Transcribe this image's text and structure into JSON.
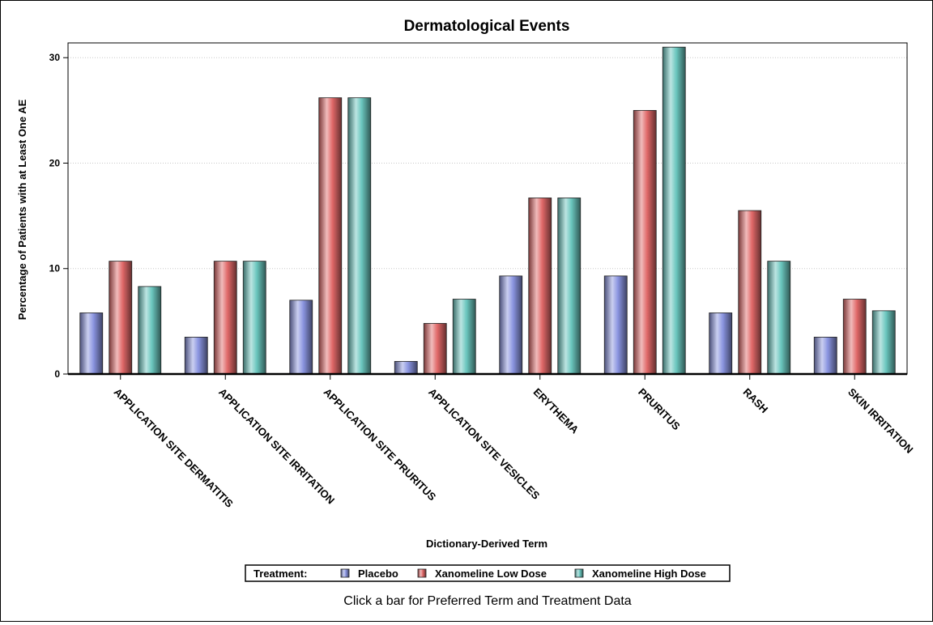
{
  "chart_data": {
    "type": "bar",
    "title": "Dermatological Events",
    "xlabel": "Dictionary-Derived Term",
    "ylabel": "Percentage of Patients with at Least One AE",
    "ylim": [
      0,
      31.4
    ],
    "yticks": [
      0,
      10,
      20,
      30
    ],
    "grid": true,
    "legend_title": "Treatment:",
    "legend_placement": "bottom",
    "categories": [
      "APPLICATION SITE DERMATITIS",
      "APPLICATION SITE IRRITATION",
      "APPLICATION SITE PRURITUS",
      "APPLICATION SITE VESICLES",
      "ERYTHEMA",
      "PRURITUS",
      "RASH",
      "SKIN IRRITATION"
    ],
    "series": [
      {
        "name": "Placebo",
        "color": "#8a94e0",
        "values": [
          5.8,
          3.5,
          7.0,
          1.2,
          9.3,
          9.3,
          5.8,
          3.5
        ]
      },
      {
        "name": "Xanomeline Low Dose",
        "color": "#e06868",
        "values": [
          10.7,
          10.7,
          26.2,
          4.8,
          16.7,
          25.0,
          15.5,
          7.1
        ]
      },
      {
        "name": "Xanomeline High Dose",
        "color": "#6ac6be",
        "values": [
          8.3,
          10.7,
          26.2,
          7.1,
          16.7,
          31.0,
          10.7,
          6.0
        ]
      }
    ]
  },
  "footnote": "Click a bar for Preferred Term and Treatment Data"
}
